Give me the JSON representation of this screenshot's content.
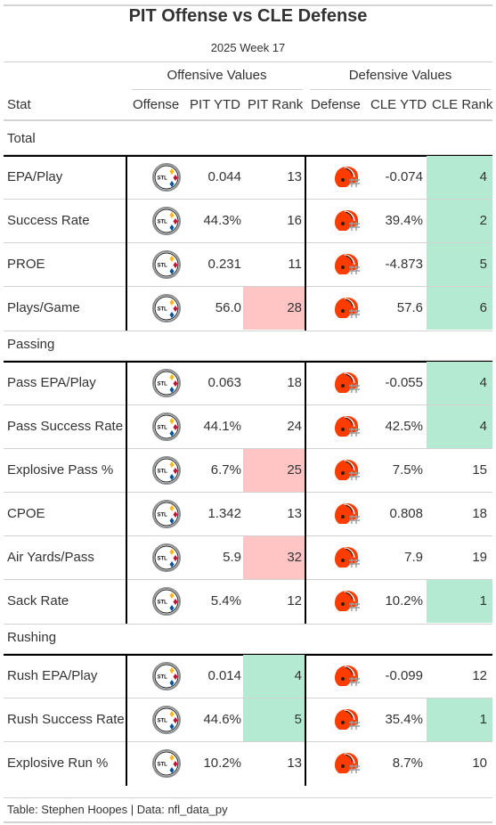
{
  "title": "PIT Offense vs CLE Defense",
  "subtitle": "2025 Week 17",
  "spanners": {
    "offense": "Offensive Values",
    "defense": "Defensive Values"
  },
  "columns": {
    "stat": "Stat",
    "offense": "Offense",
    "off_ytd": "PIT YTD",
    "off_rank": "PIT Rank",
    "defense": "Defense",
    "def_ytd": "CLE YTD",
    "def_rank": "CLE Rank"
  },
  "colors": {
    "good": "#b3ead1",
    "bad": "#ffc4c4",
    "steelers_gold": "#ffb612",
    "steelers_red": "#c60c30",
    "steelers_blue": "#00539b",
    "browns_orange": "#ff3c00",
    "browns_brown": "#311d00"
  },
  "groups": [
    {
      "label": "Total",
      "rows": [
        {
          "stat": "EPA/Play",
          "off_logo": "steelers-logo-icon",
          "off_ytd": "0.044",
          "off_rank": "13",
          "off_tone": "none",
          "def_logo": "browns-helmet-icon",
          "def_ytd": "-0.074",
          "def_rank": "4",
          "def_tone": "good"
        },
        {
          "stat": "Success Rate",
          "off_logo": "steelers-logo-icon",
          "off_ytd": "44.3%",
          "off_rank": "16",
          "off_tone": "none",
          "def_logo": "browns-helmet-icon",
          "def_ytd": "39.4%",
          "def_rank": "2",
          "def_tone": "good"
        },
        {
          "stat": "PROE",
          "off_logo": "steelers-logo-icon",
          "off_ytd": "0.231",
          "off_rank": "11",
          "off_tone": "none",
          "def_logo": "browns-helmet-icon",
          "def_ytd": "-4.873",
          "def_rank": "5",
          "def_tone": "good"
        },
        {
          "stat": "Plays/Game",
          "off_logo": "steelers-logo-icon",
          "off_ytd": "56.0",
          "off_rank": "28",
          "off_tone": "bad",
          "def_logo": "browns-helmet-icon",
          "def_ytd": "57.6",
          "def_rank": "6",
          "def_tone": "good"
        }
      ]
    },
    {
      "label": "Passing",
      "rows": [
        {
          "stat": "Pass EPA/Play",
          "off_logo": "steelers-logo-icon",
          "off_ytd": "0.063",
          "off_rank": "18",
          "off_tone": "none",
          "def_logo": "browns-helmet-icon",
          "def_ytd": "-0.055",
          "def_rank": "4",
          "def_tone": "good"
        },
        {
          "stat": "Pass Success Rate",
          "off_logo": "steelers-logo-icon",
          "off_ytd": "44.1%",
          "off_rank": "24",
          "off_tone": "none",
          "def_logo": "browns-helmet-icon",
          "def_ytd": "42.5%",
          "def_rank": "4",
          "def_tone": "good"
        },
        {
          "stat": "Explosive Pass %",
          "off_logo": "steelers-logo-icon",
          "off_ytd": "6.7%",
          "off_rank": "25",
          "off_tone": "bad",
          "def_logo": "browns-helmet-icon",
          "def_ytd": "7.5%",
          "def_rank": "15",
          "def_tone": "none"
        },
        {
          "stat": "CPOE",
          "off_logo": "steelers-logo-icon",
          "off_ytd": "1.342",
          "off_rank": "13",
          "off_tone": "none",
          "def_logo": "browns-helmet-icon",
          "def_ytd": "0.808",
          "def_rank": "18",
          "def_tone": "none"
        },
        {
          "stat": "Air Yards/Pass",
          "off_logo": "steelers-logo-icon",
          "off_ytd": "5.9",
          "off_rank": "32",
          "off_tone": "bad",
          "def_logo": "browns-helmet-icon",
          "def_ytd": "7.9",
          "def_rank": "19",
          "def_tone": "none"
        },
        {
          "stat": "Sack Rate",
          "off_logo": "steelers-logo-icon",
          "off_ytd": "5.4%",
          "off_rank": "12",
          "off_tone": "none",
          "def_logo": "browns-helmet-icon",
          "def_ytd": "10.2%",
          "def_rank": "1",
          "def_tone": "good"
        }
      ]
    },
    {
      "label": "Rushing",
      "rows": [
        {
          "stat": "Rush EPA/Play",
          "off_logo": "steelers-logo-icon",
          "off_ytd": "0.014",
          "off_rank": "4",
          "off_tone": "good",
          "def_logo": "browns-helmet-icon",
          "def_ytd": "-0.099",
          "def_rank": "12",
          "def_tone": "none"
        },
        {
          "stat": "Rush Success Rate",
          "off_logo": "steelers-logo-icon",
          "off_ytd": "44.6%",
          "off_rank": "5",
          "off_tone": "good",
          "def_logo": "browns-helmet-icon",
          "def_ytd": "35.4%",
          "def_rank": "1",
          "def_tone": "good"
        },
        {
          "stat": "Explosive Run %",
          "off_logo": "steelers-logo-icon",
          "off_ytd": "10.2%",
          "off_rank": "13",
          "off_tone": "none",
          "def_logo": "browns-helmet-icon",
          "def_ytd": "8.7%",
          "def_rank": "10",
          "def_tone": "none"
        }
      ]
    }
  ],
  "footer": "Table: Stephen Hoopes | Data: nfl_data_py"
}
